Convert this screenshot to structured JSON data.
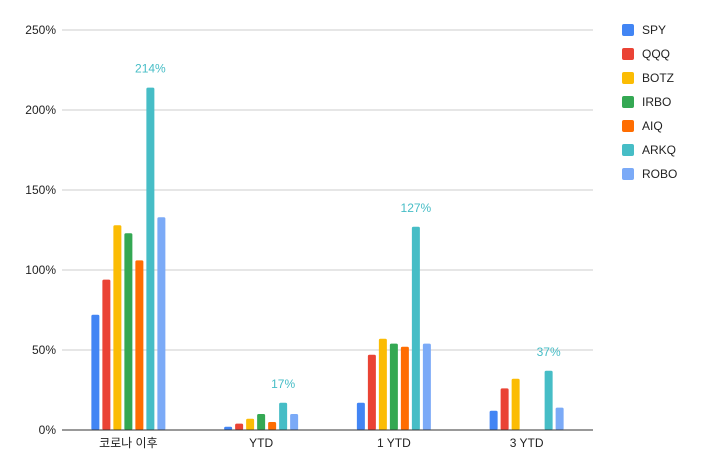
{
  "chart_data": {
    "type": "bar",
    "categories": [
      "코로나 이후",
      "YTD",
      "1 YTD",
      "3 YTD"
    ],
    "series": [
      {
        "name": "SPY",
        "color": "#4285f4",
        "values": [
          72,
          2,
          17,
          12
        ]
      },
      {
        "name": "QQQ",
        "color": "#ea4335",
        "values": [
          94,
          4,
          47,
          26
        ]
      },
      {
        "name": "BOTZ",
        "color": "#fbbc04",
        "values": [
          128,
          7,
          57,
          32
        ]
      },
      {
        "name": "IRBO",
        "color": "#34a853",
        "values": [
          123,
          10,
          54,
          null
        ]
      },
      {
        "name": "AIQ",
        "color": "#ff6d01",
        "values": [
          106,
          5,
          52,
          null
        ]
      },
      {
        "name": "ARKQ",
        "color": "#46bdc6",
        "values": [
          214,
          17,
          127,
          37
        ]
      },
      {
        "name": "ROBO",
        "color": "#7baaf7",
        "values": [
          133,
          10,
          54,
          14
        ]
      }
    ],
    "data_labels": [
      {
        "series": "ARKQ",
        "category": "코로나 이후",
        "text": "214%"
      },
      {
        "series": "ARKQ",
        "category": "YTD",
        "text": "17%"
      },
      {
        "series": "ARKQ",
        "category": "1 YTD",
        "text": "127%"
      },
      {
        "series": "ARKQ",
        "category": "3 YTD",
        "text": "37%"
      }
    ],
    "y_ticks": [
      "0%",
      "50%",
      "100%",
      "150%",
      "200%",
      "250%"
    ],
    "ylim": [
      0,
      250
    ],
    "grid": true,
    "legend_position": "right",
    "title": "",
    "xlabel": "",
    "ylabel": ""
  }
}
